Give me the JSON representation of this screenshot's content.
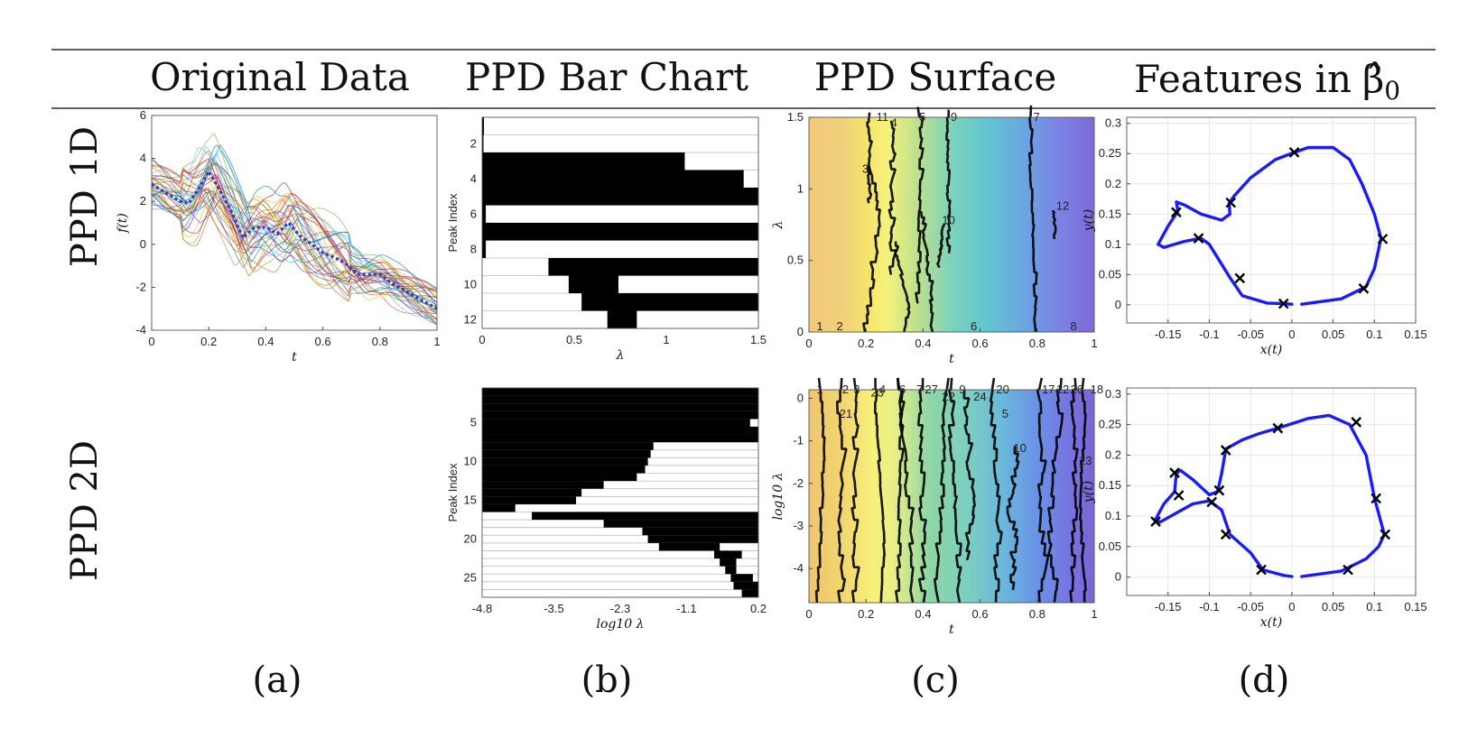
{
  "header": {
    "columns": [
      "Original Data",
      "PPD Bar Chart",
      "PPD Surface",
      "Features in"
    ],
    "features_symbol": "β̂",
    "features_subscript": "0"
  },
  "rows": [
    "PPD 1D",
    "PPD 2D"
  ],
  "panel_labels": [
    "(a)",
    "(b)",
    "(c)",
    "(d)"
  ],
  "colors": {
    "curve_blue": "#1a1aff",
    "mean_blue": "#1f3fd6",
    "bar_black": "#000000"
  },
  "chart_data": [
    {
      "id": "original-data",
      "type": "line",
      "xlabel": "t",
      "ylabel": "f(t)",
      "xlim": [
        0,
        1
      ],
      "ylim": [
        -4,
        6
      ],
      "xticks": [
        "0",
        "0.2",
        "0.4",
        "0.6",
        "0.8",
        "1"
      ],
      "yticks": [
        "-4",
        "-2",
        "0",
        "2",
        "4",
        "6"
      ],
      "mean_curve": {
        "x": [
          0,
          0.05,
          0.1,
          0.13,
          0.16,
          0.2,
          0.24,
          0.28,
          0.32,
          0.36,
          0.4,
          0.44,
          0.48,
          0.52,
          0.56,
          0.6,
          0.64,
          0.68,
          0.72,
          0.76,
          0.8,
          0.84,
          0.88,
          0.92,
          0.96,
          1.0
        ],
        "y": [
          2.8,
          2.4,
          2.0,
          1.9,
          2.5,
          3.4,
          2.5,
          1.5,
          0.3,
          0.8,
          0.8,
          0.5,
          1.0,
          0.4,
          0.0,
          -0.4,
          -0.6,
          -0.9,
          -1.4,
          -1.4,
          -1.4,
          -1.8,
          -2.1,
          -2.4,
          -2.7,
          -3.0
        ]
      },
      "n_sample_curves": 40
    },
    {
      "id": "bar-chart-1d",
      "type": "bar",
      "xlabel": "λ",
      "ylabel": "Peak Index",
      "xlim": [
        0,
        1.5
      ],
      "xticks": [
        "0",
        "0.5",
        "1",
        "1.5"
      ],
      "yticks": [
        "2",
        "4",
        "6",
        "8",
        "10",
        "12"
      ],
      "bars": [
        {
          "peak": 1,
          "from": 0,
          "to": 0.01
        },
        {
          "peak": 2,
          "from": 0,
          "to": 0
        },
        {
          "peak": 3,
          "from": 0,
          "to": 1.1
        },
        {
          "peak": 4,
          "from": 0,
          "to": 1.42
        },
        {
          "peak": 5,
          "from": 0,
          "to": 1.5
        },
        {
          "peak": 6,
          "from": 0,
          "to": 0.02
        },
        {
          "peak": 7,
          "from": 0,
          "to": 1.5
        },
        {
          "peak": 8,
          "from": 0,
          "to": 0.02
        },
        {
          "peak": 9,
          "from": 0.36,
          "to": 1.5
        },
        {
          "peak": 10,
          "from": 0.47,
          "to": 0.74
        },
        {
          "peak": 11,
          "from": 0.54,
          "to": 1.5
        },
        {
          "peak": 12,
          "from": 0.68,
          "to": 0.84
        }
      ]
    },
    {
      "id": "surface-1d",
      "type": "heatmap",
      "xlabel": "t",
      "ylabel": "λ",
      "xlim": [
        0,
        1
      ],
      "ylim": [
        0,
        1.5
      ],
      "xticks": [
        "0",
        "0.2",
        "0.4",
        "0.6",
        "0.8",
        "1"
      ],
      "yticks": [
        "0",
        "0.5",
        "1",
        "1.5"
      ],
      "peak_labels": [
        {
          "label": "1",
          "t": 0.02,
          "lambda": 0
        },
        {
          "label": "2",
          "t": 0.09,
          "lambda": 0
        },
        {
          "label": "3",
          "t": 0.18,
          "lambda": 1.1
        },
        {
          "label": "4",
          "t": 0.28,
          "lambda": 1.42
        },
        {
          "label": "5",
          "t": 0.38,
          "lambda": 1.5
        },
        {
          "label": "6",
          "t": 0.56,
          "lambda": 0
        },
        {
          "label": "7",
          "t": 0.78,
          "lambda": 1.5
        },
        {
          "label": "8",
          "t": 0.91,
          "lambda": 0
        },
        {
          "label": "9",
          "t": 0.49,
          "lambda": 1.5
        },
        {
          "label": "10",
          "t": 0.46,
          "lambda": 0.74
        },
        {
          "label": "11",
          "t": 0.23,
          "lambda": 1.5
        },
        {
          "label": "12",
          "t": 0.86,
          "lambda": 0.84
        }
      ]
    },
    {
      "id": "features-1d",
      "type": "scatter",
      "xlabel": "x(t)",
      "ylabel": "y(t)",
      "xlim": [
        -0.2,
        0.15
      ],
      "ylim": [
        -0.03,
        0.31
      ],
      "xticks": [
        "-0.15",
        "-0.1",
        "-0.05",
        "0",
        "0.05",
        "0.1",
        "0.15"
      ],
      "yticks": [
        "0",
        "0.05",
        "0.1",
        "0.15",
        "0.2",
        "0.25",
        "0.3"
      ],
      "curve": {
        "x": [
          0.012,
          0.06,
          0.09,
          0.1,
          0.108,
          0.1,
          0.085,
          0.07,
          0.05,
          0.02,
          0.003,
          -0.02,
          -0.05,
          -0.07,
          -0.076,
          -0.075,
          -0.085,
          -0.11,
          -0.13,
          -0.14,
          -0.138,
          -0.15,
          -0.162,
          -0.155,
          -0.13,
          -0.11,
          -0.1,
          -0.075,
          -0.06,
          -0.03,
          -0.01,
          0.0
        ],
        "y": [
          0.001,
          0.01,
          0.03,
          0.06,
          0.11,
          0.15,
          0.2,
          0.24,
          0.26,
          0.26,
          0.252,
          0.24,
          0.21,
          0.18,
          0.168,
          0.15,
          0.14,
          0.15,
          0.165,
          0.17,
          0.155,
          0.13,
          0.1,
          0.095,
          0.105,
          0.11,
          0.1,
          0.045,
          0.015,
          0.003,
          0.002,
          0.001
        ]
      },
      "markers": {
        "x": [
          -0.01,
          0.087,
          0.11,
          0.003,
          -0.074,
          -0.14,
          -0.113,
          -0.063
        ],
        "y": [
          0.002,
          0.027,
          0.109,
          0.252,
          0.169,
          0.153,
          0.11,
          0.044
        ]
      }
    },
    {
      "id": "bar-chart-2d",
      "type": "bar",
      "xlabel": "log10 λ",
      "ylabel": "Peak Index",
      "xlim": [
        -4.8,
        0.2
      ],
      "xticks": [
        "-4.8",
        "-3.5",
        "-2.3",
        "-1.1",
        "0.2"
      ],
      "yticks": [
        "5",
        "10",
        "15",
        "20",
        "25"
      ],
      "bars": [
        {
          "peak": 1,
          "from": -4.8,
          "to": 0.2
        },
        {
          "peak": 2,
          "from": -4.8,
          "to": 0.2
        },
        {
          "peak": 3,
          "from": -4.8,
          "to": 0.2
        },
        {
          "peak": 4,
          "from": -4.8,
          "to": 0.2
        },
        {
          "peak": 5,
          "from": -4.8,
          "to": 0.05
        },
        {
          "peak": 6,
          "from": -4.8,
          "to": 0.2
        },
        {
          "peak": 7,
          "from": -4.8,
          "to": 0.2
        },
        {
          "peak": 8,
          "from": -4.8,
          "to": -1.7
        },
        {
          "peak": 9,
          "from": -4.8,
          "to": -1.75
        },
        {
          "peak": 10,
          "from": -4.8,
          "to": -1.8
        },
        {
          "peak": 11,
          "from": -4.8,
          "to": -1.85
        },
        {
          "peak": 12,
          "from": -4.8,
          "to": -2.0
        },
        {
          "peak": 13,
          "from": -4.8,
          "to": -2.6
        },
        {
          "peak": 14,
          "from": -4.8,
          "to": -3.0
        },
        {
          "peak": 15,
          "from": -4.8,
          "to": -3.1
        },
        {
          "peak": 16,
          "from": -4.8,
          "to": -4.2
        },
        {
          "peak": 17,
          "from": -3.9,
          "to": 0.2
        },
        {
          "peak": 18,
          "from": -2.6,
          "to": 0.2
        },
        {
          "peak": 19,
          "from": -1.9,
          "to": 0.2
        },
        {
          "peak": 20,
          "from": -1.8,
          "to": 0.2
        },
        {
          "peak": 21,
          "from": -1.6,
          "to": -0.5
        },
        {
          "peak": 22,
          "from": -0.6,
          "to": -0.1
        },
        {
          "peak": 23,
          "from": -0.5,
          "to": -0.2
        },
        {
          "peak": 24,
          "from": -0.4,
          "to": -0.2
        },
        {
          "peak": 25,
          "from": -0.3,
          "to": 0.1
        },
        {
          "peak": 26,
          "from": -0.25,
          "to": 0.2
        },
        {
          "peak": 27,
          "from": -0.1,
          "to": 0.2
        }
      ]
    },
    {
      "id": "surface-2d",
      "type": "heatmap",
      "xlabel": "t",
      "ylabel": "log10 λ",
      "xlim": [
        0,
        1
      ],
      "ylim": [
        -4.8,
        0.2
      ],
      "xticks": [
        "0",
        "0.2",
        "0.4",
        "0.6",
        "0.8",
        "1"
      ],
      "yticks": [
        "-4",
        "-3",
        "-2",
        "-1",
        "0"
      ],
      "peak_labels": [
        {
          "label": "1",
          "t": 0.02,
          "lambda": 0.2
        },
        {
          "label": "2",
          "t": 0.11,
          "lambda": 0.2
        },
        {
          "label": "3",
          "t": 0.15,
          "lambda": 0.2
        },
        {
          "label": "4",
          "t": 0.24,
          "lambda": 0.2
        },
        {
          "label": "6",
          "t": 0.31,
          "lambda": 0.2
        },
        {
          "label": "7",
          "t": 0.37,
          "lambda": 0.2
        },
        {
          "label": "27",
          "t": 0.4,
          "lambda": 0.2
        },
        {
          "label": "9",
          "t": 0.52,
          "lambda": 0.2
        },
        {
          "label": "20",
          "t": 0.65,
          "lambda": 0.2
        },
        {
          "label": "17",
          "t": 0.81,
          "lambda": 0.2
        },
        {
          "label": "12",
          "t": 0.86,
          "lambda": 0.2
        },
        {
          "label": "26",
          "t": 0.91,
          "lambda": 0.2
        },
        {
          "label": "18",
          "t": 0.98,
          "lambda": 0.2
        },
        {
          "label": "21",
          "t": 0.1,
          "lambda": -0.5
        },
        {
          "label": "23",
          "t": 0.21,
          "lambda": 0
        },
        {
          "label": "22",
          "t": 0.46,
          "lambda": -0.1
        },
        {
          "label": "24",
          "t": 0.57,
          "lambda": -0.1
        },
        {
          "label": "5",
          "t": 0.67,
          "lambda": -0.5
        },
        {
          "label": "10",
          "t": 0.71,
          "lambda": -1.3
        },
        {
          "label": "13",
          "t": 0.94,
          "lambda": -1.6
        }
      ]
    },
    {
      "id": "features-2d",
      "type": "scatter",
      "xlabel": "x(t)",
      "ylabel": "y(t)",
      "xlim": [
        -0.2,
        0.15
      ],
      "ylim": [
        -0.03,
        0.31
      ],
      "xticks": [
        "-0.15",
        "-0.1",
        "-0.05",
        "0",
        "0.05",
        "0.1",
        "0.15"
      ],
      "yticks": [
        "0",
        "0.05",
        "0.1",
        "0.15",
        "0.2",
        "0.25",
        "0.3"
      ],
      "curve": {
        "x": [
          0.012,
          0.06,
          0.09,
          0.105,
          0.112,
          0.1,
          0.09,
          0.07,
          0.045,
          0.02,
          -0.015,
          -0.04,
          -0.06,
          -0.08,
          -0.085,
          -0.09,
          -0.1,
          -0.12,
          -0.135,
          -0.14,
          -0.142,
          -0.155,
          -0.165,
          -0.16,
          -0.12,
          -0.1,
          -0.085,
          -0.075,
          -0.05,
          -0.035,
          -0.01,
          0.0
        ],
        "y": [
          0.001,
          0.01,
          0.03,
          0.05,
          0.07,
          0.13,
          0.2,
          0.25,
          0.265,
          0.26,
          0.245,
          0.235,
          0.225,
          0.21,
          0.17,
          0.14,
          0.135,
          0.16,
          0.175,
          0.17,
          0.14,
          0.12,
          0.095,
          0.09,
          0.12,
          0.125,
          0.11,
          0.07,
          0.04,
          0.012,
          0.003,
          0.001
        ]
      },
      "markers": {
        "x": [
          -0.037,
          0.068,
          0.113,
          0.102,
          0.078,
          -0.017,
          -0.08,
          -0.088,
          -0.097,
          -0.137,
          -0.142,
          -0.165,
          -0.08
        ],
        "y": [
          0.012,
          0.012,
          0.07,
          0.129,
          0.254,
          0.244,
          0.208,
          0.142,
          0.123,
          0.134,
          0.171,
          0.091,
          0.07
        ]
      }
    }
  ]
}
